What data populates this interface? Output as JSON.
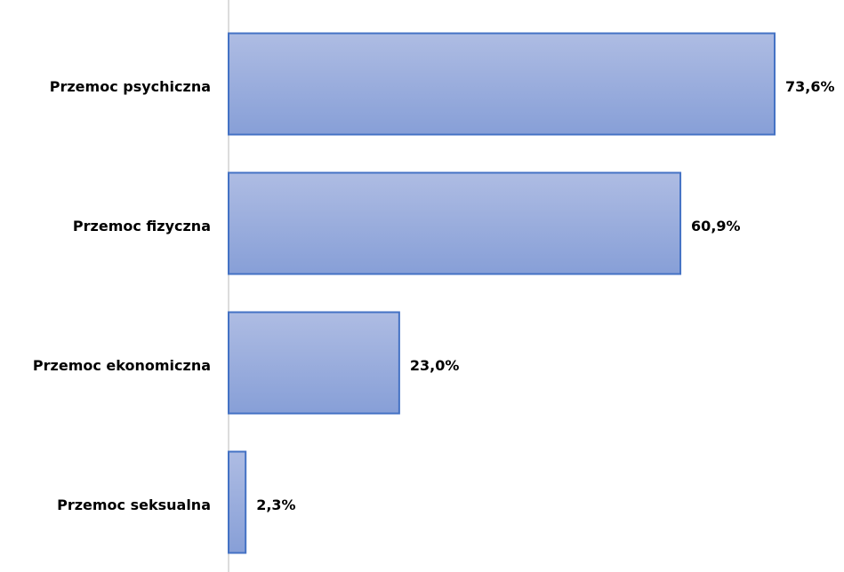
{
  "chart_data": {
    "type": "bar",
    "orientation": "horizontal",
    "categories": [
      "Przemoc psychiczna",
      "Przemoc fizyczna",
      "Przemoc ekonomiczna",
      "Przemoc seksualna"
    ],
    "values": [
      73.6,
      60.9,
      23.0,
      2.3
    ],
    "value_labels": [
      "73,6%",
      "60,9%",
      "23,0%",
      "2,3%"
    ],
    "color": "#4472c4"
  }
}
